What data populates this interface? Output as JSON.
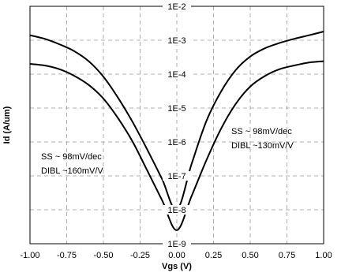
{
  "chart_data": {
    "type": "line",
    "xlabel": "Vgs (V)",
    "ylabel": "Id (A/um)",
    "xlim": [
      -1.0,
      1.0
    ],
    "ylim": [
      1e-09,
      0.01
    ],
    "y_scale": "log",
    "grid": true,
    "x_ticks": [
      "-1.00",
      "-0.75",
      "-0.50",
      "-0.25",
      "0.00",
      "0.25",
      "0.50",
      "0.75",
      "1.00"
    ],
    "y_ticks": [
      "1E-9",
      "1E-8",
      "1E-7",
      "1E-6",
      "1E-5",
      "1E-4",
      "1E-3",
      "1E-2"
    ],
    "series": [
      {
        "x": [
          -1.0,
          -0.9,
          -0.8,
          -0.7,
          -0.6,
          -0.5,
          -0.4,
          -0.3,
          -0.2,
          -0.1,
          0.0,
          0.1,
          0.2,
          0.3,
          0.4,
          0.5,
          0.6,
          0.7,
          0.8,
          0.9,
          1.0
        ],
        "y": [
          0.0014,
          0.0011,
          0.00076,
          0.00048,
          0.00024,
          8.4e-05,
          2e-05,
          3.8e-06,
          5.8e-07,
          8e-08,
          1e-08,
          2.2e-07,
          4e-06,
          3e-05,
          0.00013,
          0.00033,
          0.00058,
          0.00083,
          0.0011,
          0.0014,
          0.0018
        ]
      },
      {
        "x": [
          -1.0,
          -0.9,
          -0.8,
          -0.7,
          -0.6,
          -0.5,
          -0.4,
          -0.3,
          -0.2,
          -0.1,
          0.0,
          0.1,
          0.2,
          0.3,
          0.4,
          0.5,
          0.6,
          0.7,
          0.8,
          0.9,
          1.0
        ],
        "y": [
          0.0002,
          0.00018,
          0.00014,
          9e-05,
          4.8e-05,
          1.9e-05,
          5e-06,
          1e-06,
          1.4e-07,
          1.9e-08,
          2.5e-09,
          2.5e-08,
          2.8e-07,
          2.4e-06,
          1.3e-05,
          4.3e-05,
          8.8e-05,
          0.00014,
          0.00018,
          0.00022,
          0.00024
        ]
      }
    ],
    "annotations": [
      {
        "lines": [
          "SS ~ 98mV/dec",
          "DIBL ~160mV/V"
        ],
        "placement": "left"
      },
      {
        "lines": [
          "SS ~ 98mV/dec",
          "DIBL ~130mV/V"
        ],
        "placement": "right"
      }
    ],
    "colors": {
      "lines": "#000000",
      "grid": "#999999"
    }
  }
}
